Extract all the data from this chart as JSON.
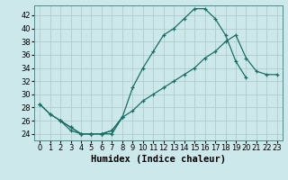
{
  "bg_color": "#cce8eb",
  "grid_color": "#b0cccc",
  "line_color": "#1a6e65",
  "xlabel": "Humidex (Indice chaleur)",
  "xlabel_fontsize": 7.5,
  "tick_fontsize": 6,
  "xlim": [
    -0.5,
    23.5
  ],
  "ylim": [
    23.0,
    43.5
  ],
  "yticks": [
    24,
    26,
    28,
    30,
    32,
    34,
    36,
    38,
    40,
    42
  ],
  "xticks": [
    0,
    1,
    2,
    3,
    4,
    5,
    6,
    7,
    8,
    9,
    10,
    11,
    12,
    13,
    14,
    15,
    16,
    17,
    18,
    19,
    20,
    21,
    22,
    23
  ],
  "line1_x": [
    0,
    1,
    2,
    3,
    4,
    5,
    6,
    7,
    8,
    9,
    10,
    11,
    12,
    13,
    14,
    15,
    16,
    17,
    18,
    19,
    20
  ],
  "line1_y": [
    28.5,
    27.0,
    26.0,
    24.5,
    24.0,
    24.0,
    24.0,
    24.0,
    26.5,
    31.0,
    34.0,
    36.5,
    39.0,
    40.0,
    41.5,
    43.0,
    43.0,
    41.5,
    39.0,
    35.0,
    32.5
  ],
  "line2_x": [
    0,
    1,
    2,
    3,
    4,
    5,
    6,
    7,
    8
  ],
  "line2_y": [
    28.5,
    27.0,
    26.0,
    25.0,
    24.0,
    24.0,
    24.0,
    24.5,
    26.5
  ],
  "line3_x": [
    2,
    3,
    4,
    5,
    6,
    7,
    8,
    9,
    10,
    11,
    12,
    13,
    14,
    15,
    16,
    17,
    18,
    19,
    20,
    21,
    22,
    23
  ],
  "line3_y": [
    26.0,
    25.0,
    24.0,
    24.0,
    24.0,
    24.5,
    26.5,
    27.5,
    29.0,
    30.0,
    31.0,
    32.0,
    33.0,
    34.0,
    35.5,
    36.5,
    38.0,
    39.0,
    35.5,
    33.5,
    33.0,
    33.0
  ]
}
